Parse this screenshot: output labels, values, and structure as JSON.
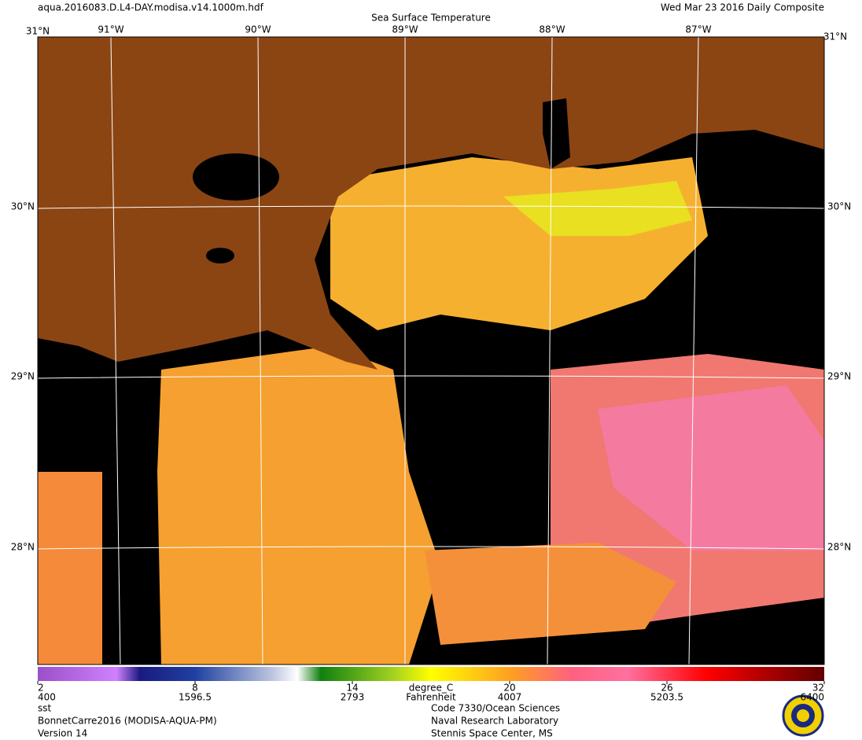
{
  "header": {
    "file": "aqua.2016083.D.L4-DAY.modisa.v14.1000m.hdf",
    "date": "Wed Mar 23 2016 Daily Composite",
    "title": "Sea Surface Temperature"
  },
  "map": {
    "lon_labels": [
      "91°W",
      "90°W",
      "89°W",
      "88°W",
      "87°W"
    ],
    "lat_labels": [
      "30°N",
      "29°N",
      "28°N"
    ],
    "corner_top": "31°N"
  },
  "colorbar": {
    "min": 2,
    "max": 32,
    "ticks": [
      2,
      8,
      14,
      20,
      26,
      32
    ],
    "second_row": [
      400,
      1596.5,
      2793,
      4007,
      5203.5,
      6400
    ],
    "unit": "degree_C",
    "unit2": "Fahrenheit"
  },
  "footer": {
    "left": [
      "sst",
      "BonnetCarre2016 (MODISA-AQUA-PM)",
      "Version 14"
    ],
    "right": [
      "Code 7330/Ocean Sciences",
      "Naval Research Laboratory",
      "Stennis Space Center, MS"
    ]
  }
}
